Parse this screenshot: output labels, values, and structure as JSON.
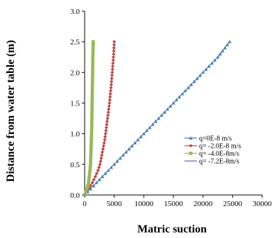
{
  "chart_data": {
    "type": "line",
    "title": "",
    "xlabel": "Matric suction",
    "ylabel": "Distance from water table (m)",
    "xlim": [
      0,
      30000
    ],
    "ylim": [
      0,
      3.0
    ],
    "x_ticks": [
      "0",
      "5000",
      "10000",
      "15000",
      "20000",
      "25000",
      "30000"
    ],
    "y_ticks": [
      "0.0",
      "0.5",
      "1.0",
      "1.5",
      "2.0",
      "2.5",
      "3.0"
    ],
    "grid": false,
    "legend_position": "right-center",
    "series": [
      {
        "name": "q=0E-8 m/s",
        "color": "#4a7ebb",
        "marker": "triangle",
        "points": [
          [
            0,
            0
          ],
          [
            2500,
            0.25
          ],
          [
            5000,
            0.5
          ],
          [
            7500,
            0.75
          ],
          [
            10000,
            1.0
          ],
          [
            12500,
            1.25
          ],
          [
            15000,
            1.5
          ],
          [
            17500,
            1.75
          ],
          [
            20000,
            2.0
          ],
          [
            22500,
            2.25
          ],
          [
            24500,
            2.5
          ]
        ]
      },
      {
        "name": "q= -2.0E-8 m/s",
        "color": "#be4b48",
        "marker": "diamond",
        "points": [
          [
            0,
            0
          ],
          [
            700,
            0.1
          ],
          [
            1300,
            0.2
          ],
          [
            1800,
            0.3
          ],
          [
            2250,
            0.4
          ],
          [
            2600,
            0.5
          ],
          [
            3000,
            0.7
          ],
          [
            3400,
            0.9
          ],
          [
            3800,
            1.2
          ],
          [
            4200,
            1.5
          ],
          [
            4500,
            1.8
          ],
          [
            4750,
            2.1
          ],
          [
            4900,
            2.3
          ],
          [
            5000,
            2.5
          ]
        ]
      },
      {
        "name": "q= -4.0E-8m/s",
        "color": "#98b954",
        "marker": "square",
        "points": [
          [
            0,
            0
          ],
          [
            400,
            0.1
          ],
          [
            650,
            0.2
          ],
          [
            850,
            0.35
          ],
          [
            1000,
            0.5
          ],
          [
            1100,
            0.8
          ],
          [
            1200,
            1.1
          ],
          [
            1250,
            1.4
          ],
          [
            1300,
            1.7
          ],
          [
            1350,
            2.0
          ],
          [
            1400,
            2.3
          ],
          [
            1450,
            2.5
          ]
        ]
      },
      {
        "name": "q= -7.2E-8m/s",
        "color": "#7d60a0",
        "marker": "none",
        "points": [
          [
            0,
            0
          ],
          [
            100,
            0.02
          ]
        ]
      }
    ]
  }
}
